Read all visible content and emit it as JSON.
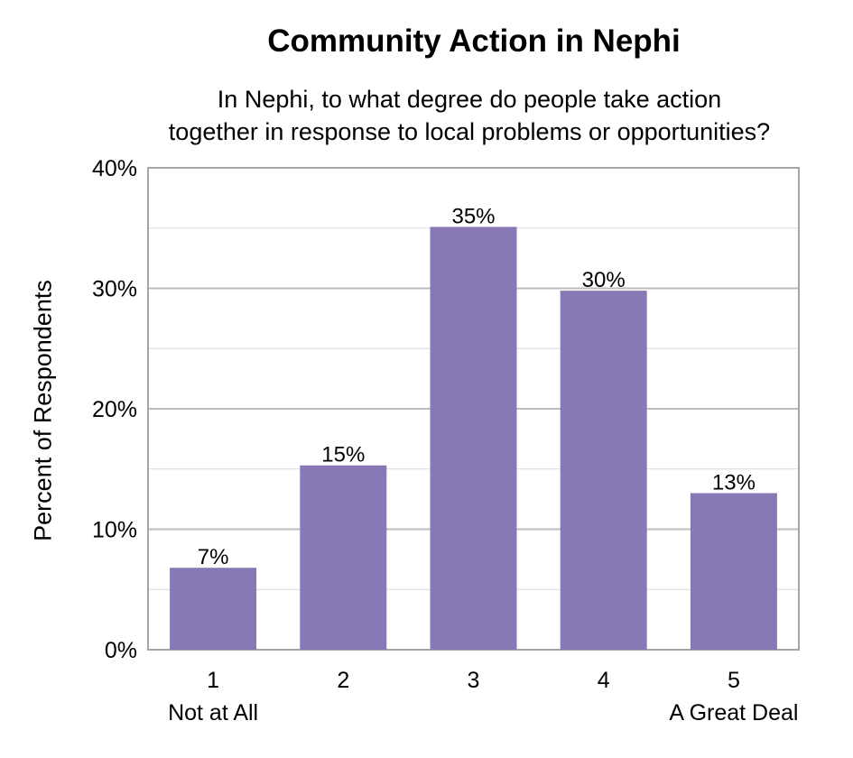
{
  "chart_data": {
    "type": "bar",
    "title": "Community Action in Nephi",
    "subtitle_lines": [
      "In Nephi, to what degree do people take action",
      "together in response to local problems or opportunities?"
    ],
    "ylabel": "Percent of Respondents",
    "categories": [
      "1",
      "2",
      "3",
      "4",
      "5"
    ],
    "category_sublabels": [
      "Not at All",
      "",
      "",
      "",
      "A Great Deal"
    ],
    "values": [
      6.8,
      15.3,
      35.1,
      29.8,
      13.0
    ],
    "data_labels": [
      "7%",
      "15%",
      "35%",
      "30%",
      "13%"
    ],
    "ylim": [
      0,
      40
    ],
    "yticks": [
      0,
      10,
      20,
      30,
      40
    ],
    "ytick_labels": [
      "0%",
      "10%",
      "20%",
      "30%",
      "40%"
    ],
    "grid": true,
    "bar_color": "#8879b6",
    "grid_color": "#c8c8c8"
  }
}
